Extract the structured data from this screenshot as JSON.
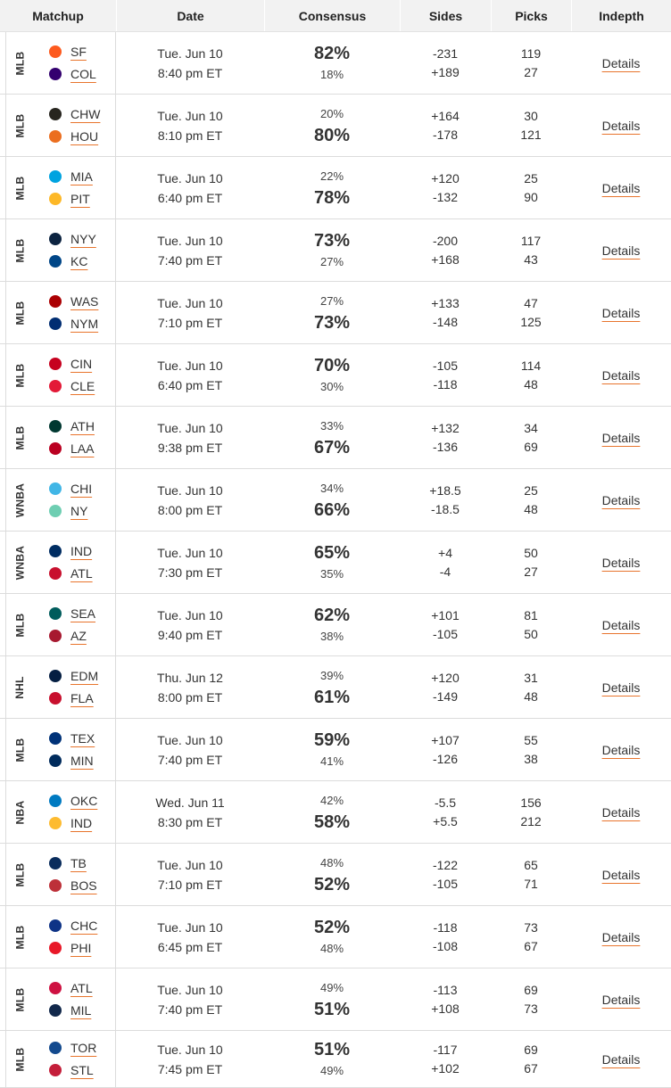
{
  "headers": {
    "matchup": "Matchup",
    "date": "Date",
    "consensus": "Consensus",
    "sides": "Sides",
    "picks": "Picks",
    "indepth": "Indepth"
  },
  "details_label": "Details",
  "rows": [
    {
      "league": "MLB",
      "away": {
        "abbr": "SF",
        "color": "#fd5a1e",
        "icon": "giants-logo"
      },
      "home": {
        "abbr": "COL",
        "color": "#33006f",
        "icon": "rockies-logo"
      },
      "day": "Tue. Jun 10",
      "time": "8:40 pm ET",
      "away_pct": "82%",
      "home_pct": "18%",
      "fav": "away",
      "away_side": "-231",
      "home_side": "+189",
      "away_picks": "119",
      "home_picks": "27"
    },
    {
      "league": "MLB",
      "away": {
        "abbr": "CHW",
        "color": "#27251f",
        "icon": "white-sox-logo"
      },
      "home": {
        "abbr": "HOU",
        "color": "#eb6e1f",
        "icon": "astros-logo"
      },
      "day": "Tue. Jun 10",
      "time": "8:10 pm ET",
      "away_pct": "20%",
      "home_pct": "80%",
      "fav": "home",
      "away_side": "+164",
      "home_side": "-178",
      "away_picks": "30",
      "home_picks": "121"
    },
    {
      "league": "MLB",
      "away": {
        "abbr": "MIA",
        "color": "#00a3e0",
        "icon": "marlins-logo"
      },
      "home": {
        "abbr": "PIT",
        "color": "#fdb827",
        "icon": "pirates-logo"
      },
      "day": "Tue. Jun 10",
      "time": "6:40 pm ET",
      "away_pct": "22%",
      "home_pct": "78%",
      "fav": "home",
      "away_side": "+120",
      "home_side": "-132",
      "away_picks": "25",
      "home_picks": "90"
    },
    {
      "league": "MLB",
      "away": {
        "abbr": "NYY",
        "color": "#0c2340",
        "icon": "yankees-logo"
      },
      "home": {
        "abbr": "KC",
        "color": "#004687",
        "icon": "royals-logo"
      },
      "day": "Tue. Jun 10",
      "time": "7:40 pm ET",
      "away_pct": "73%",
      "home_pct": "27%",
      "fav": "away",
      "away_side": "-200",
      "home_side": "+168",
      "away_picks": "117",
      "home_picks": "43"
    },
    {
      "league": "MLB",
      "away": {
        "abbr": "WAS",
        "color": "#ab0003",
        "icon": "nationals-logo"
      },
      "home": {
        "abbr": "NYM",
        "color": "#002d72",
        "icon": "mets-logo"
      },
      "day": "Tue. Jun 10",
      "time": "7:10 pm ET",
      "away_pct": "27%",
      "home_pct": "73%",
      "fav": "home",
      "away_side": "+133",
      "home_side": "-148",
      "away_picks": "47",
      "home_picks": "125"
    },
    {
      "league": "MLB",
      "away": {
        "abbr": "CIN",
        "color": "#c6011f",
        "icon": "reds-logo"
      },
      "home": {
        "abbr": "CLE",
        "color": "#e31937",
        "icon": "guardians-logo"
      },
      "day": "Tue. Jun 10",
      "time": "6:40 pm ET",
      "away_pct": "70%",
      "home_pct": "30%",
      "fav": "away",
      "away_side": "-105",
      "home_side": "-118",
      "away_picks": "114",
      "home_picks": "48"
    },
    {
      "league": "MLB",
      "away": {
        "abbr": "ATH",
        "color": "#003831",
        "icon": "athletics-logo"
      },
      "home": {
        "abbr": "LAA",
        "color": "#ba0021",
        "icon": "angels-logo"
      },
      "day": "Tue. Jun 10",
      "time": "9:38 pm ET",
      "away_pct": "33%",
      "home_pct": "67%",
      "fav": "home",
      "away_side": "+132",
      "home_side": "-136",
      "away_picks": "34",
      "home_picks": "69"
    },
    {
      "league": "WNBA",
      "away": {
        "abbr": "CHI",
        "color": "#41b6e6",
        "icon": "sky-logo"
      },
      "home": {
        "abbr": "NY",
        "color": "#6eceb2",
        "icon": "liberty-logo"
      },
      "day": "Tue. Jun 10",
      "time": "8:00 pm ET",
      "away_pct": "34%",
      "home_pct": "66%",
      "fav": "home",
      "away_side": "+18.5",
      "home_side": "-18.5",
      "away_picks": "25",
      "home_picks": "48"
    },
    {
      "league": "WNBA",
      "away": {
        "abbr": "IND",
        "color": "#002d62",
        "icon": "fever-logo"
      },
      "home": {
        "abbr": "ATL",
        "color": "#c8102e",
        "icon": "dream-logo"
      },
      "day": "Tue. Jun 10",
      "time": "7:30 pm ET",
      "away_pct": "65%",
      "home_pct": "35%",
      "fav": "away",
      "away_side": "+4",
      "home_side": "-4",
      "away_picks": "50",
      "home_picks": "27"
    },
    {
      "league": "MLB",
      "away": {
        "abbr": "SEA",
        "color": "#005c5c",
        "icon": "mariners-logo"
      },
      "home": {
        "abbr": "AZ",
        "color": "#a71930",
        "icon": "diamondbacks-logo"
      },
      "day": "Tue. Jun 10",
      "time": "9:40 pm ET",
      "away_pct": "62%",
      "home_pct": "38%",
      "fav": "away",
      "away_side": "+101",
      "home_side": "-105",
      "away_picks": "81",
      "home_picks": "50"
    },
    {
      "league": "NHL",
      "away": {
        "abbr": "EDM",
        "color": "#041e42",
        "icon": "oilers-logo"
      },
      "home": {
        "abbr": "FLA",
        "color": "#c8102e",
        "icon": "panthers-logo"
      },
      "day": "Thu. Jun 12",
      "time": "8:00 pm ET",
      "away_pct": "39%",
      "home_pct": "61%",
      "fav": "home",
      "away_side": "+120",
      "home_side": "-149",
      "away_picks": "31",
      "home_picks": "48"
    },
    {
      "league": "MLB",
      "away": {
        "abbr": "TEX",
        "color": "#003278",
        "icon": "rangers-logo"
      },
      "home": {
        "abbr": "MIN",
        "color": "#002b5c",
        "icon": "twins-logo"
      },
      "day": "Tue. Jun 10",
      "time": "7:40 pm ET",
      "away_pct": "59%",
      "home_pct": "41%",
      "fav": "away",
      "away_side": "+107",
      "home_side": "-126",
      "away_picks": "55",
      "home_picks": "38"
    },
    {
      "league": "NBA",
      "away": {
        "abbr": "OKC",
        "color": "#007ac1",
        "icon": "thunder-logo"
      },
      "home": {
        "abbr": "IND",
        "color": "#fdbb30",
        "icon": "pacers-logo"
      },
      "day": "Wed. Jun 11",
      "time": "8:30 pm ET",
      "away_pct": "42%",
      "home_pct": "58%",
      "fav": "home",
      "away_side": "-5.5",
      "home_side": "+5.5",
      "away_picks": "156",
      "home_picks": "212"
    },
    {
      "league": "MLB",
      "away": {
        "abbr": "TB",
        "color": "#092c5c",
        "icon": "rays-logo"
      },
      "home": {
        "abbr": "BOS",
        "color": "#bd3039",
        "icon": "red-sox-logo"
      },
      "day": "Tue. Jun 10",
      "time": "7:10 pm ET",
      "away_pct": "48%",
      "home_pct": "52%",
      "fav": "home",
      "away_side": "-122",
      "home_side": "-105",
      "away_picks": "65",
      "home_picks": "71"
    },
    {
      "league": "MLB",
      "away": {
        "abbr": "CHC",
        "color": "#0e3386",
        "icon": "cubs-logo"
      },
      "home": {
        "abbr": "PHI",
        "color": "#e81828",
        "icon": "phillies-logo"
      },
      "day": "Tue. Jun 10",
      "time": "6:45 pm ET",
      "away_pct": "52%",
      "home_pct": "48%",
      "fav": "away",
      "away_side": "-118",
      "home_side": "-108",
      "away_picks": "73",
      "home_picks": "67"
    },
    {
      "league": "MLB",
      "away": {
        "abbr": "ATL",
        "color": "#ce1141",
        "icon": "braves-logo"
      },
      "home": {
        "abbr": "MIL",
        "color": "#12284b",
        "icon": "brewers-logo"
      },
      "day": "Tue. Jun 10",
      "time": "7:40 pm ET",
      "away_pct": "49%",
      "home_pct": "51%",
      "fav": "home",
      "away_side": "-113",
      "home_side": "+108",
      "away_picks": "69",
      "home_picks": "73"
    },
    {
      "league": "MLB",
      "away": {
        "abbr": "TOR",
        "color": "#134a8e",
        "icon": "blue-jays-logo"
      },
      "home": {
        "abbr": "STL",
        "color": "#c41e3a",
        "icon": "cardinals-logo"
      },
      "day": "Tue. Jun 10",
      "time": "7:45 pm ET",
      "away_pct": "51%",
      "home_pct": "49%",
      "fav": "away",
      "away_side": "-117",
      "home_side": "+102",
      "away_picks": "69",
      "home_picks": "67"
    }
  ]
}
